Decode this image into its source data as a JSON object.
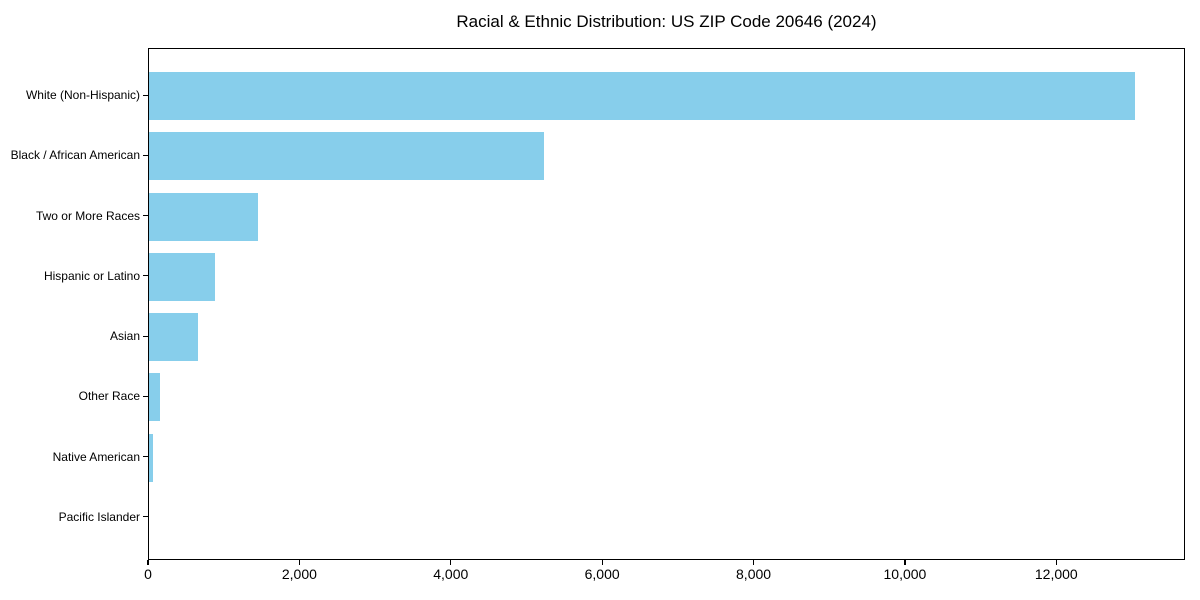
{
  "figure": {
    "background": "#ffffff",
    "text_color": "#000000"
  },
  "chart_data": {
    "type": "bar",
    "orientation": "horizontal",
    "title": "Racial & Ethnic Distribution: US ZIP Code 20646 (2024)",
    "categories": [
      "White (Non-Hispanic)",
      "Black / African American",
      "Two or More Races",
      "Hispanic or Latino",
      "Asian",
      "Other Race",
      "Native American",
      "Pacific Islander"
    ],
    "values": [
      13050,
      5230,
      1440,
      870,
      650,
      145,
      55,
      0
    ],
    "bar_color": "#87CEEB",
    "xlabel": "",
    "ylabel": "",
    "xlim": [
      0,
      13700
    ],
    "x_ticks": [
      0,
      2000,
      4000,
      6000,
      8000,
      10000,
      12000
    ],
    "x_tick_labels": [
      "0",
      "2,000",
      "4,000",
      "6,000",
      "8,000",
      "10,000",
      "12,000"
    ],
    "grid": false,
    "legend": "none"
  }
}
